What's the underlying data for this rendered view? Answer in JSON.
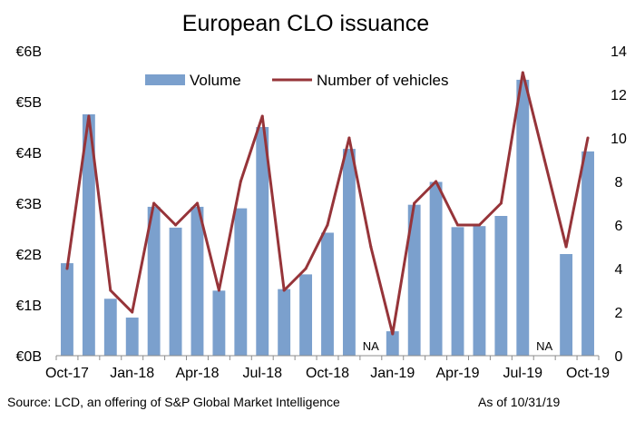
{
  "chart_data": {
    "type": "bar+line",
    "title": "European CLO issuance",
    "categories": [
      "Oct-17",
      "Nov-17",
      "Dec-17",
      "Jan-18",
      "Feb-18",
      "Mar-18",
      "Apr-18",
      "May-18",
      "Jun-18",
      "Jul-18",
      "Aug-18",
      "Sep-18",
      "Oct-18",
      "Nov-18",
      "Dec-18",
      "Jan-19",
      "Feb-19",
      "Mar-19",
      "Apr-19",
      "May-19",
      "Jun-19",
      "Jul-19",
      "Aug-19",
      "Sep-19",
      "Oct-19"
    ],
    "x_tick_labels": [
      "Oct-17",
      "Jan-18",
      "Apr-18",
      "Jul-18",
      "Oct-18",
      "Jan-19",
      "Apr-19",
      "Jul-19",
      "Oct-19"
    ],
    "series": [
      {
        "name": "Volume",
        "type": "bar",
        "axis": "left",
        "color": "#7BA0CD",
        "values": [
          1.82,
          4.75,
          1.12,
          0.75,
          2.93,
          2.52,
          2.93,
          1.28,
          2.9,
          4.5,
          1.31,
          1.6,
          2.42,
          4.07,
          null,
          0.48,
          2.97,
          3.42,
          2.53,
          2.55,
          2.75,
          5.43,
          null,
          2.0,
          4.02
        ]
      },
      {
        "name": "Number of vehicles",
        "type": "line",
        "axis": "right",
        "color": "#963439",
        "values": [
          4,
          11,
          3,
          2,
          7,
          6,
          7,
          3,
          8,
          11,
          3,
          4,
          6,
          10,
          5,
          1,
          7,
          8,
          6,
          6,
          7,
          13,
          9,
          5,
          10
        ]
      }
    ],
    "y_left": {
      "ticks": [
        "€0B",
        "€1B",
        "€2B",
        "€3B",
        "€4B",
        "€5B",
        "€6B"
      ],
      "min": 0,
      "max": 6
    },
    "y_right": {
      "ticks": [
        "0",
        "2",
        "4",
        "6",
        "8",
        "10",
        "12",
        "14"
      ],
      "min": 0,
      "max": 14
    },
    "na_label": "NA",
    "grid": false,
    "legend": "top-center",
    "source": "Source: LCD, an offering of S&P Global Market Intelligence",
    "as_of": "As of 10/31/19"
  }
}
